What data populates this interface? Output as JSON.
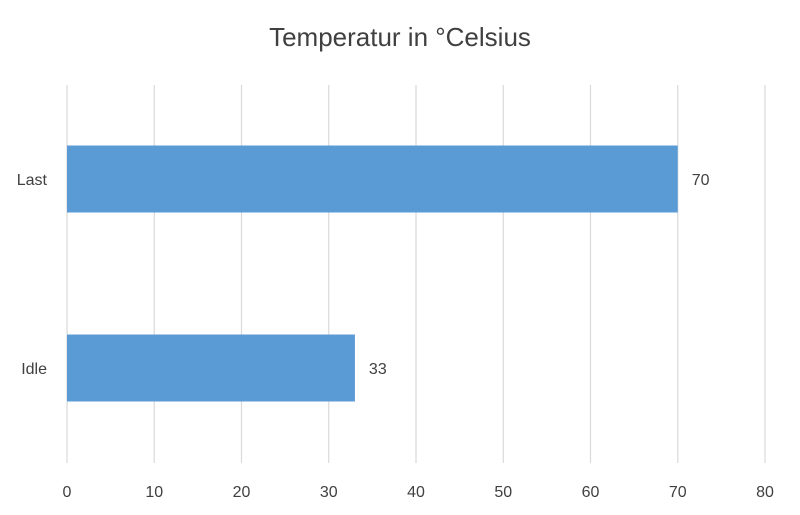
{
  "chart_data": {
    "type": "bar",
    "orientation": "horizontal",
    "title": "Temperatur in °Celsius",
    "categories": [
      "Last",
      "Idle"
    ],
    "values": [
      70,
      33
    ],
    "data_labels": [
      "70",
      "33"
    ],
    "xlim": [
      0,
      80
    ],
    "x_ticks": [
      0,
      10,
      20,
      30,
      40,
      50,
      60,
      70,
      80
    ],
    "x_tick_labels": [
      "0",
      "10",
      "20",
      "30",
      "40",
      "50",
      "60",
      "70",
      "80"
    ],
    "grid": true,
    "legend": "none",
    "bar_color": "#5b9bd5",
    "grid_color": "#d9d9d9",
    "text_color": "#404040"
  }
}
